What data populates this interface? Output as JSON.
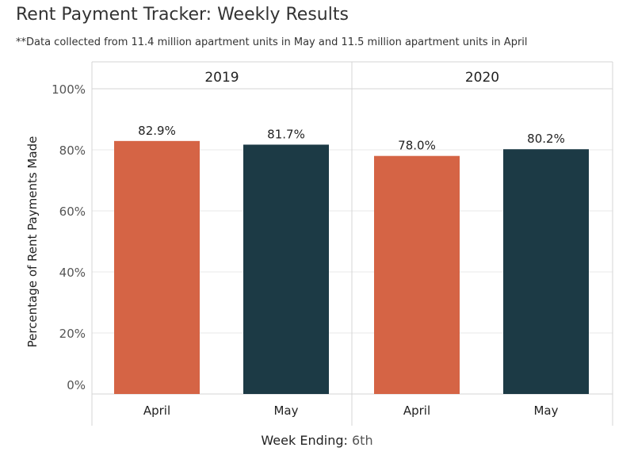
{
  "header": {
    "title": "Rent Payment Tracker: Weekly Results",
    "subtitle": "**Data collected from 11.4 million apartment units in May and 11.5 million apartment units in April"
  },
  "filter": {
    "label": "Week Ending:",
    "value": "6th"
  },
  "colors": {
    "april": "#d56445",
    "may": "#1c3a45",
    "grid": "#e8e8e8",
    "divider": "#d4d4d4"
  },
  "chart_data": {
    "type": "bar",
    "ylabel": "Percentage of Rent Payments Made",
    "ylim": [
      0,
      100
    ],
    "yticks": [
      "0%",
      "20%",
      "40%",
      "60%",
      "80%",
      "100%"
    ],
    "ytick_values": [
      0,
      20,
      40,
      60,
      80,
      100
    ],
    "categories": [
      "April",
      "May"
    ],
    "panels": [
      {
        "label": "2019",
        "values": [
          82.9,
          81.7
        ],
        "value_labels": [
          "82.9%",
          "81.7%"
        ]
      },
      {
        "label": "2020",
        "values": [
          78.0,
          80.2
        ],
        "value_labels": [
          "78.0%",
          "80.2%"
        ]
      }
    ],
    "grid": true,
    "legend": "none"
  }
}
